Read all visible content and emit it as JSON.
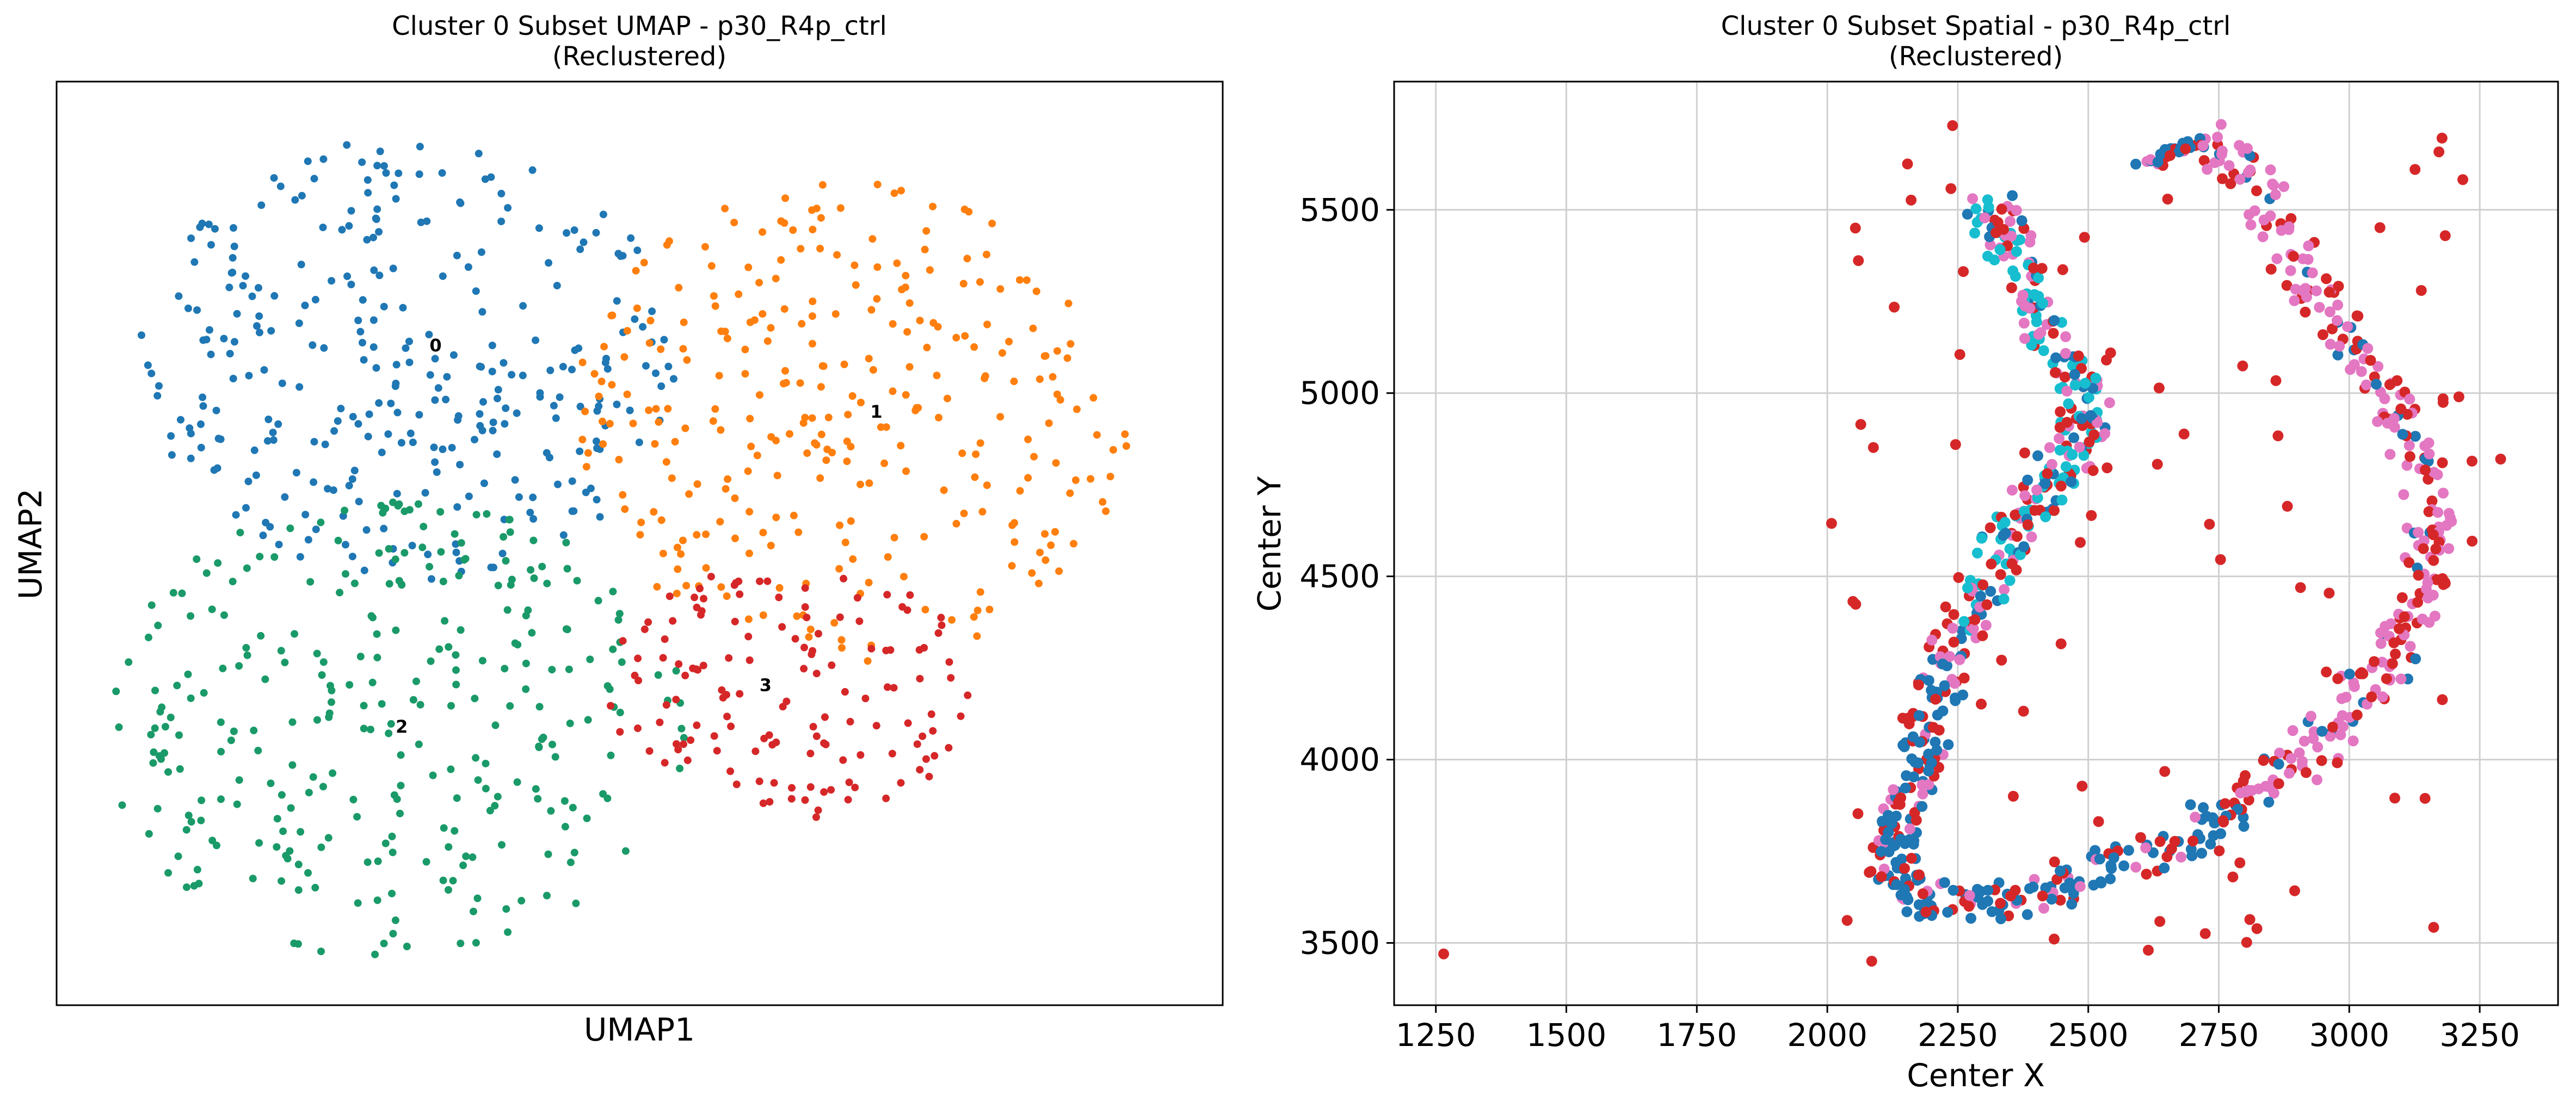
{
  "chart_data": [
    {
      "type": "scatter",
      "title": "Cluster 0 Subset UMAP - p30_R4p_ctrl\n(Reclustered)",
      "xlabel": "UMAP1",
      "ylabel": "UMAP2",
      "xticks": [],
      "yticks": [],
      "xlim": [
        0,
        100
      ],
      "ylim": [
        0,
        100
      ],
      "grid": false,
      "cluster_labels": [
        {
          "label": "0",
          "x": 32.5,
          "y": 70.8
        },
        {
          "label": "1",
          "x": 70.3,
          "y": 63.6
        },
        {
          "label": "2",
          "x": 29.6,
          "y": 29.5
        },
        {
          "label": "3",
          "x": 60.8,
          "y": 34.0
        }
      ],
      "series": [
        {
          "color": "#1f77b4",
          "cluster": "0",
          "region": {
            "cx": 31,
            "cy": 70,
            "rx": 24,
            "ry": 24
          },
          "count": 310
        },
        {
          "color": "#ff7f0e",
          "cluster": "1",
          "region": {
            "cx": 68,
            "cy": 63,
            "rx": 24,
            "ry": 26
          },
          "count": 300
        },
        {
          "color": "#1a9a68",
          "cluster": "2",
          "region": {
            "cx": 29,
            "cy": 30,
            "rx": 25,
            "ry": 25
          },
          "count": 300
        },
        {
          "color": "#d62728",
          "cluster": "3",
          "region": {
            "cx": 63,
            "cy": 34,
            "rx": 16,
            "ry": 14
          },
          "count": 140
        }
      ]
    },
    {
      "type": "scatter",
      "title": "Cluster 0 Subset Spatial - p30_R4p_ctrl\n(Reclustered)",
      "xlabel": "Center X",
      "ylabel": "Center Y",
      "xlim": [
        1170,
        3400
      ],
      "ylim": [
        3330,
        5850
      ],
      "xticks": [
        1250,
        1500,
        1750,
        2000,
        2250,
        2500,
        2750,
        3000,
        3250
      ],
      "yticks": [
        3500,
        4000,
        4500,
        5000,
        5500
      ],
      "grid": true,
      "series": [
        {
          "color": "#d62728",
          "cluster": "3"
        },
        {
          "color": "#e377c2",
          "cluster": "4"
        },
        {
          "color": "#17becf",
          "cluster": "5"
        },
        {
          "color": "#1f77b4",
          "cluster": "0"
        }
      ],
      "notable_points": [
        {
          "x": 1265,
          "y": 3470,
          "color": "#d62728"
        },
        {
          "x": 2085,
          "y": 3450,
          "color": "#d62728"
        },
        {
          "x": 2240,
          "y": 5730,
          "color": "#d62728"
        },
        {
          "x": 3210,
          "y": 4990,
          "color": "#d62728"
        },
        {
          "x": 3290,
          "y": 4820,
          "color": "#d62728"
        },
        {
          "x": 2615,
          "y": 3480,
          "color": "#d62728"
        }
      ],
      "ring_path": [
        [
          2720,
          5690
        ],
        [
          2820,
          5560
        ],
        [
          2900,
          5360
        ],
        [
          2980,
          5180
        ],
        [
          3070,
          5000
        ],
        [
          3140,
          4820
        ],
        [
          3160,
          4620
        ],
        [
          3140,
          4450
        ],
        [
          3080,
          4280
        ],
        [
          3000,
          4140
        ],
        [
          2890,
          3990
        ],
        [
          2760,
          3850
        ],
        [
          2640,
          3760
        ],
        [
          2500,
          3680
        ],
        [
          2380,
          3620
        ],
        [
          2250,
          3600
        ],
        [
          2150,
          3640
        ],
        [
          2120,
          3740
        ],
        [
          2140,
          3860
        ],
        [
          2170,
          3980
        ],
        [
          2190,
          4100
        ],
        [
          2220,
          4240
        ],
        [
          2260,
          4380
        ],
        [
          2310,
          4520
        ],
        [
          2370,
          4640
        ],
        [
          2410,
          4740
        ],
        [
          2460,
          4820
        ],
        [
          2500,
          4920
        ],
        [
          2480,
          5040
        ],
        [
          2420,
          5160
        ],
        [
          2380,
          5280
        ],
        [
          2340,
          5420
        ],
        [
          2310,
          5540
        ]
      ],
      "upper_ring_path": [
        [
          2600,
          5620
        ],
        [
          2660,
          5660
        ],
        [
          2720,
          5690
        ]
      ]
    }
  ]
}
